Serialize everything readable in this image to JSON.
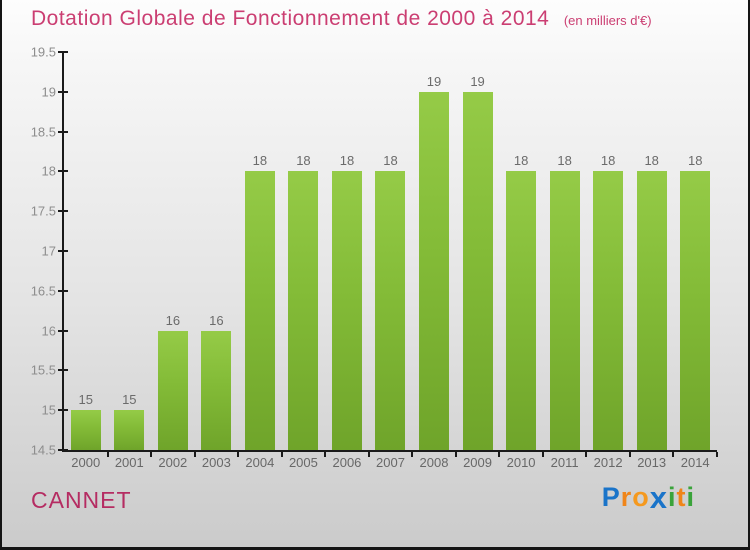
{
  "header": {
    "title": "Dotation Globale de Fonctionnement de 2000 à 2014",
    "subtitle": "(en milliers d'€)",
    "title_color": "#cb3e72"
  },
  "footer": {
    "place": "CANNET",
    "place_color": "#b52c62",
    "logo_name": "Proxiti",
    "logo_letters": [
      {
        "ch": "P",
        "color": "#1a74c9",
        "big": false
      },
      {
        "ch": "r",
        "color": "#f08519",
        "big": false
      },
      {
        "ch": "o",
        "color": "#f5991e",
        "big": false
      },
      {
        "ch": "x",
        "color": "#1a74c9",
        "big": true
      },
      {
        "ch": "i",
        "color": "#3aa33a",
        "big": false
      },
      {
        "ch": "t",
        "color": "#f08519",
        "big": false
      },
      {
        "ch": "i",
        "color": "#3aa33a",
        "big": false
      }
    ]
  },
  "chart_data": {
    "type": "bar",
    "title": "Dotation Globale de Fonctionnement de 2000 à 2014",
    "unit_note": "(en milliers d'€)",
    "categories": [
      "2000",
      "2001",
      "2002",
      "2003",
      "2004",
      "2005",
      "2006",
      "2007",
      "2008",
      "2009",
      "2010",
      "2011",
      "2012",
      "2013",
      "2014"
    ],
    "values": [
      15,
      15,
      16,
      16,
      18,
      18,
      18,
      18,
      19,
      19,
      18,
      18,
      18,
      18,
      18
    ],
    "xlabel": "",
    "ylabel": "",
    "ylim": [
      14.5,
      19.5
    ],
    "ytick_step": 0.5,
    "grid": false,
    "legend": false,
    "bar_color_top": "#95cb47",
    "bar_color_bottom": "#6fa42a",
    "axis_color": "#1a1a1a",
    "tick_label_color": "#8d8d8d",
    "value_label_color": "#6b6b6b"
  }
}
